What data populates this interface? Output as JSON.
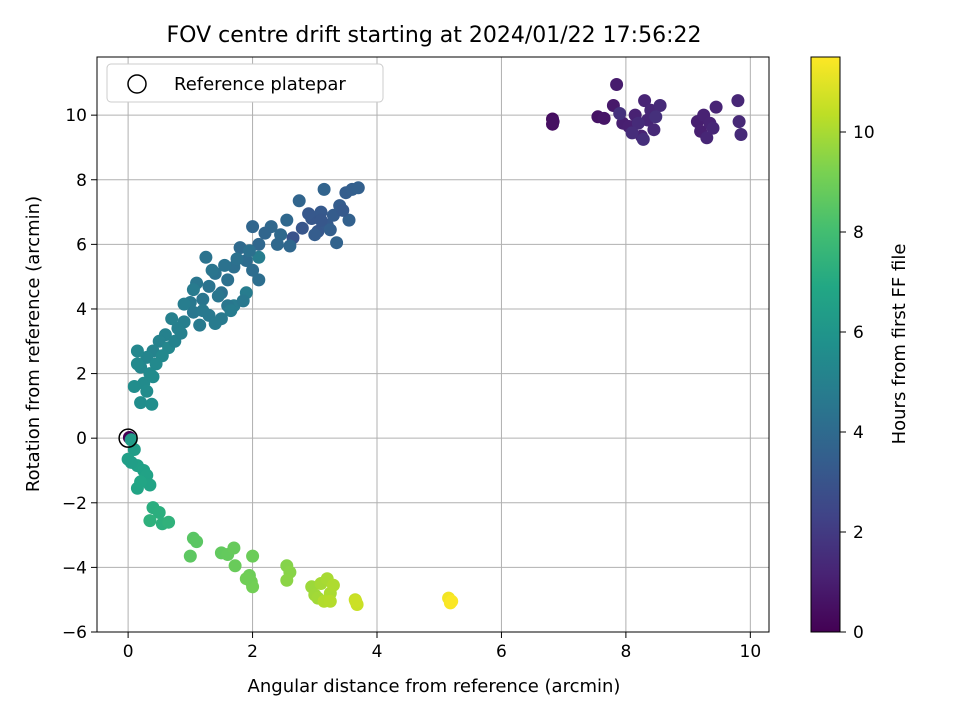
{
  "chart_data": {
    "type": "scatter",
    "title": "FOV centre drift starting at 2024/01/22 17:56:22",
    "xlabel": "Angular distance from reference (arcmin)",
    "ylabel": "Rotation from reference (arcmin)",
    "xlim": [
      -0.5,
      10.3
    ],
    "ylim": [
      -6,
      11.8
    ],
    "xticks": [
      0,
      2,
      4,
      6,
      8,
      10
    ],
    "yticks": [
      -6,
      -4,
      -2,
      0,
      2,
      4,
      6,
      8,
      10
    ],
    "grid": true,
    "legend": {
      "placement": "upper-left",
      "entries": [
        "Reference platepar"
      ]
    },
    "reference_point": {
      "x": 0,
      "y": 0
    },
    "colorbar": {
      "label": "Hours from first FF file",
      "colormap": "viridis",
      "range": [
        0,
        11.5
      ],
      "ticks": [
        0,
        2,
        4,
        6,
        8,
        10
      ]
    },
    "points": [
      [
        0.02,
        0.02,
        0.0
      ],
      [
        6.82,
        9.88,
        0.4
      ],
      [
        6.82,
        9.72,
        0.45
      ],
      [
        6.83,
        9.8,
        0.5
      ],
      [
        7.55,
        9.95,
        0.6
      ],
      [
        7.65,
        9.9,
        0.7
      ],
      [
        7.8,
        10.3,
        0.8
      ],
      [
        7.85,
        10.95,
        0.9
      ],
      [
        7.95,
        9.75,
        1.0
      ],
      [
        8.05,
        9.65,
        1.05
      ],
      [
        8.15,
        10.0,
        1.1
      ],
      [
        8.25,
        9.35,
        1.15
      ],
      [
        8.3,
        10.45,
        1.2
      ],
      [
        8.35,
        9.85,
        1.25
      ],
      [
        8.4,
        10.15,
        1.3
      ],
      [
        8.45,
        9.55,
        1.35
      ],
      [
        8.55,
        10.3,
        1.4
      ],
      [
        8.2,
        9.75,
        1.45
      ],
      [
        8.1,
        9.45,
        1.5
      ],
      [
        8.28,
        9.25,
        1.55
      ],
      [
        8.48,
        9.95,
        1.6
      ],
      [
        7.9,
        10.05,
        1.65
      ],
      [
        9.15,
        9.8,
        1.0
      ],
      [
        9.2,
        9.5,
        1.05
      ],
      [
        9.25,
        10.0,
        1.1
      ],
      [
        9.35,
        9.75,
        1.15
      ],
      [
        9.45,
        10.25,
        1.2
      ],
      [
        9.3,
        9.3,
        1.25
      ],
      [
        9.4,
        9.6,
        1.3
      ],
      [
        9.8,
        10.45,
        1.3
      ],
      [
        9.82,
        9.8,
        1.35
      ],
      [
        9.85,
        9.4,
        1.4
      ],
      [
        2.65,
        6.2,
        3.0
      ],
      [
        2.8,
        6.5,
        3.1
      ],
      [
        2.95,
        6.8,
        3.15
      ],
      [
        3.05,
        6.4,
        3.2
      ],
      [
        3.1,
        7.0,
        3.25
      ],
      [
        3.2,
        6.6,
        3.3
      ],
      [
        3.3,
        6.9,
        3.35
      ],
      [
        3.4,
        7.2,
        3.4
      ],
      [
        3.5,
        7.6,
        3.45
      ],
      [
        3.6,
        7.7,
        3.5
      ],
      [
        3.7,
        7.75,
        3.55
      ],
      [
        3.55,
        6.75,
        3.6
      ],
      [
        3.35,
        6.05,
        3.65
      ],
      [
        3.15,
        7.7,
        3.7
      ],
      [
        2.75,
        7.35,
        3.75
      ],
      [
        3.0,
        6.3,
        3.4
      ],
      [
        3.25,
        6.45,
        3.5
      ],
      [
        3.45,
        7.05,
        3.3
      ],
      [
        2.9,
        6.95,
        3.2
      ],
      [
        3.1,
        6.75,
        3.15
      ],
      [
        2.0,
        6.55,
        3.8
      ],
      [
        2.1,
        6.0,
        3.85
      ],
      [
        2.3,
        6.55,
        3.9
      ],
      [
        2.45,
        6.3,
        3.95
      ],
      [
        2.55,
        6.75,
        3.9
      ],
      [
        2.6,
        5.95,
        3.85
      ],
      [
        2.2,
        6.35,
        3.8
      ],
      [
        2.4,
        6.0,
        3.9
      ],
      [
        1.8,
        5.9,
        4.0
      ],
      [
        1.9,
        5.5,
        4.05
      ],
      [
        2.0,
        5.2,
        4.1
      ],
      [
        2.1,
        4.9,
        4.15
      ],
      [
        1.7,
        5.3,
        4.2
      ],
      [
        1.6,
        4.9,
        4.25
      ],
      [
        1.5,
        4.5,
        4.3
      ],
      [
        1.4,
        5.1,
        4.35
      ],
      [
        1.3,
        4.7,
        4.4
      ],
      [
        1.2,
        4.3,
        4.45
      ],
      [
        1.1,
        4.8,
        4.5
      ],
      [
        1.05,
        3.9,
        4.55
      ],
      [
        1.0,
        4.2,
        4.6
      ],
      [
        1.3,
        3.8,
        4.65
      ],
      [
        1.5,
        3.7,
        4.7
      ],
      [
        1.7,
        4.1,
        4.75
      ],
      [
        1.9,
        4.5,
        4.8
      ],
      [
        2.1,
        5.6,
        4.85
      ],
      [
        1.85,
        4.25,
        4.6
      ],
      [
        1.6,
        4.1,
        4.55
      ],
      [
        1.45,
        4.4,
        4.5
      ],
      [
        1.35,
        5.2,
        4.45
      ],
      [
        1.25,
        5.6,
        4.4
      ],
      [
        1.55,
        5.35,
        4.35
      ],
      [
        1.75,
        5.55,
        4.3
      ],
      [
        1.95,
        5.8,
        4.25
      ],
      [
        1.15,
        3.5,
        4.7
      ],
      [
        1.4,
        3.55,
        4.75
      ],
      [
        1.65,
        3.95,
        4.8
      ],
      [
        0.9,
        4.15,
        4.85
      ],
      [
        1.05,
        4.6,
        4.75
      ],
      [
        1.2,
        3.95,
        4.65
      ],
      [
        0.9,
        3.6,
        4.9
      ],
      [
        0.8,
        3.4,
        4.95
      ],
      [
        0.7,
        3.7,
        5.0
      ],
      [
        0.6,
        3.2,
        5.05
      ],
      [
        0.5,
        3.0,
        5.1
      ],
      [
        0.4,
        2.7,
        5.15
      ],
      [
        0.3,
        2.5,
        5.2
      ],
      [
        0.2,
        2.2,
        5.25
      ],
      [
        0.65,
        2.8,
        5.3
      ],
      [
        0.55,
        2.55,
        5.35
      ],
      [
        0.45,
        2.3,
        5.4
      ],
      [
        0.35,
        2.0,
        5.45
      ],
      [
        0.25,
        1.7,
        5.5
      ],
      [
        0.15,
        2.3,
        5.4
      ],
      [
        0.3,
        1.45,
        5.55
      ],
      [
        0.2,
        1.1,
        5.6
      ],
      [
        0.38,
        1.05,
        5.65
      ],
      [
        0.4,
        1.9,
        5.5
      ],
      [
        0.15,
        2.7,
        5.3
      ],
      [
        0.75,
        3.0,
        5.1
      ],
      [
        0.85,
        3.25,
        5.0
      ],
      [
        0.1,
        1.6,
        5.6
      ],
      [
        0.05,
        -0.05,
        6.3
      ],
      [
        0.1,
        -0.35,
        6.4
      ],
      [
        0.0,
        -0.65,
        6.5
      ],
      [
        0.15,
        -0.85,
        6.55
      ],
      [
        0.25,
        -1.0,
        6.6
      ],
      [
        0.3,
        -1.15,
        6.65
      ],
      [
        0.35,
        -1.45,
        6.7
      ],
      [
        0.15,
        -1.55,
        6.75
      ],
      [
        0.2,
        -1.35,
        6.8
      ],
      [
        0.05,
        -0.75,
        6.45
      ],
      [
        0.4,
        -2.15,
        7.2
      ],
      [
        0.5,
        -2.3,
        7.25
      ],
      [
        0.55,
        -2.65,
        7.3
      ],
      [
        0.35,
        -2.55,
        7.35
      ],
      [
        0.65,
        -2.6,
        7.4
      ],
      [
        1.05,
        -3.1,
        8.5
      ],
      [
        1.1,
        -3.2,
        8.55
      ],
      [
        1.0,
        -3.65,
        8.6
      ],
      [
        1.5,
        -3.55,
        8.7
      ],
      [
        1.6,
        -3.6,
        8.75
      ],
      [
        1.7,
        -3.4,
        8.8
      ],
      [
        1.72,
        -3.95,
        8.85
      ],
      [
        2.0,
        -3.65,
        8.9
      ],
      [
        1.95,
        -4.25,
        8.95
      ],
      [
        1.98,
        -4.45,
        9.0
      ],
      [
        2.0,
        -4.6,
        9.05
      ],
      [
        1.9,
        -4.35,
        9.0
      ],
      [
        2.55,
        -3.95,
        9.4
      ],
      [
        2.6,
        -4.15,
        9.45
      ],
      [
        2.55,
        -4.4,
        9.5
      ],
      [
        2.95,
        -4.6,
        9.8
      ],
      [
        3.0,
        -4.85,
        9.85
      ],
      [
        3.05,
        -4.95,
        9.9
      ],
      [
        3.1,
        -4.5,
        9.95
      ],
      [
        3.2,
        -4.35,
        10.0
      ],
      [
        3.25,
        -4.8,
        10.05
      ],
      [
        3.3,
        -4.55,
        10.1
      ],
      [
        3.15,
        -5.05,
        10.15
      ],
      [
        3.25,
        -5.05,
        10.2
      ],
      [
        3.65,
        -5.0,
        10.5
      ],
      [
        3.68,
        -5.15,
        10.55
      ],
      [
        3.66,
        -5.05,
        10.6
      ],
      [
        5.15,
        -4.95,
        11.3
      ],
      [
        5.18,
        -5.1,
        11.4
      ],
      [
        5.2,
        -5.05,
        11.45
      ]
    ]
  }
}
